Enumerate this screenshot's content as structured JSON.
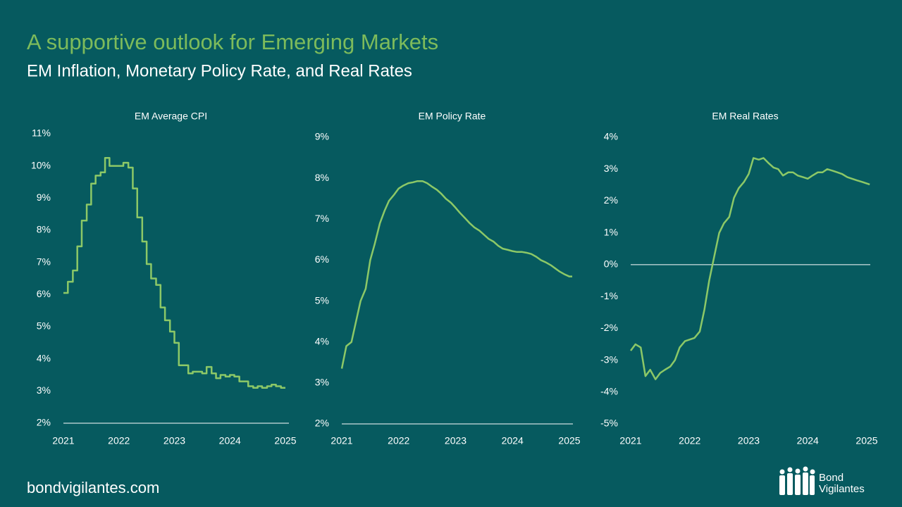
{
  "slide": {
    "title": "A supportive outlook for Emerging Markets",
    "subtitle": "EM Inflation, Monetary Policy Rate, and Real Rates",
    "website": "bondvigilantes.com",
    "logo": [
      "Bond",
      "Vigilantes"
    ]
  },
  "chart_data": [
    {
      "type": "line",
      "step": true,
      "title": "EM Average CPI",
      "color": "#8cc867",
      "x": [
        2021,
        2021.08,
        2021.17,
        2021.25,
        2021.33,
        2021.42,
        2021.5,
        2021.58,
        2021.67,
        2021.75,
        2021.83,
        2021.92,
        2022,
        2022.08,
        2022.17,
        2022.25,
        2022.33,
        2022.42,
        2022.5,
        2022.58,
        2022.67,
        2022.75,
        2022.83,
        2022.92,
        2023,
        2023.08,
        2023.17,
        2023.25,
        2023.33,
        2023.42,
        2023.5,
        2023.58,
        2023.67,
        2023.75,
        2023.83,
        2023.92,
        2024,
        2024.08,
        2024.17,
        2024.25,
        2024.33,
        2024.42,
        2024.5,
        2024.58,
        2024.67,
        2024.75,
        2024.83,
        2024.92,
        2025
      ],
      "values": [
        6.05,
        6.4,
        6.75,
        7.5,
        8.3,
        8.8,
        9.45,
        9.7,
        9.8,
        10.25,
        10.0,
        10.0,
        10.0,
        10.1,
        9.95,
        9.3,
        8.4,
        7.65,
        6.95,
        6.5,
        6.3,
        5.6,
        5.2,
        4.85,
        4.5,
        3.8,
        3.8,
        3.55,
        3.6,
        3.6,
        3.55,
        3.75,
        3.55,
        3.4,
        3.5,
        3.45,
        3.5,
        3.45,
        3.3,
        3.3,
        3.15,
        3.1,
        3.15,
        3.1,
        3.15,
        3.2,
        3.15,
        3.1,
        3.1
      ],
      "xlim": [
        2021,
        2025
      ],
      "xticks": [
        2021,
        2022,
        2023,
        2024,
        2025
      ],
      "ylim": [
        2,
        11
      ],
      "yticks": [
        {
          "value": 2,
          "label": "2%"
        },
        {
          "value": 3,
          "label": "3%"
        },
        {
          "value": 4,
          "label": "4%"
        },
        {
          "value": 5,
          "label": "5%"
        },
        {
          "value": 6,
          "label": "6%"
        },
        {
          "value": 7,
          "label": "7%"
        },
        {
          "value": 8,
          "label": "8%"
        },
        {
          "value": 9,
          "label": "9%"
        },
        {
          "value": 10,
          "label": "10%"
        },
        {
          "value": 11,
          "label": "11%"
        }
      ]
    },
    {
      "type": "line",
      "step": false,
      "title": "EM Policy Rate",
      "color": "#8cc867",
      "x": [
        2021,
        2021.08,
        2021.17,
        2021.25,
        2021.33,
        2021.42,
        2021.5,
        2021.58,
        2021.67,
        2021.75,
        2021.83,
        2021.92,
        2022,
        2022.08,
        2022.17,
        2022.25,
        2022.33,
        2022.42,
        2022.5,
        2022.58,
        2022.67,
        2022.75,
        2022.83,
        2022.92,
        2023,
        2023.08,
        2023.17,
        2023.25,
        2023.33,
        2023.42,
        2023.5,
        2023.58,
        2023.67,
        2023.75,
        2023.83,
        2023.92,
        2024,
        2024.08,
        2024.17,
        2024.25,
        2024.33,
        2024.42,
        2024.5,
        2024.58,
        2024.67,
        2024.75,
        2024.83,
        2024.92,
        2025,
        2025.05
      ],
      "values": [
        3.35,
        3.9,
        4.0,
        4.5,
        5.0,
        5.3,
        6.0,
        6.4,
        6.9,
        7.2,
        7.45,
        7.6,
        7.75,
        7.82,
        7.88,
        7.9,
        7.93,
        7.93,
        7.88,
        7.8,
        7.72,
        7.62,
        7.5,
        7.4,
        7.28,
        7.15,
        7.02,
        6.9,
        6.8,
        6.72,
        6.62,
        6.52,
        6.45,
        6.35,
        6.28,
        6.25,
        6.22,
        6.2,
        6.2,
        6.18,
        6.15,
        6.08,
        6.0,
        5.95,
        5.88,
        5.8,
        5.72,
        5.65,
        5.6,
        5.6
      ],
      "xlim": [
        2021,
        2025
      ],
      "xticks": [
        2021,
        2022,
        2023,
        2024,
        2025
      ],
      "ylim": [
        2,
        9
      ],
      "yticks": [
        {
          "value": 2,
          "label": "2%"
        },
        {
          "value": 3,
          "label": "3%"
        },
        {
          "value": 4,
          "label": "4%"
        },
        {
          "value": 5,
          "label": "5%"
        },
        {
          "value": 6,
          "label": "6%"
        },
        {
          "value": 7,
          "label": "7%"
        },
        {
          "value": 8,
          "label": "8%"
        },
        {
          "value": 9,
          "label": "9%"
        }
      ]
    },
    {
      "type": "line",
      "step": false,
      "title": "EM Real Rates",
      "color": "#8cc867",
      "x": [
        2021,
        2021.08,
        2021.17,
        2021.25,
        2021.33,
        2021.42,
        2021.5,
        2021.58,
        2021.67,
        2021.75,
        2021.83,
        2021.92,
        2022,
        2022.08,
        2022.17,
        2022.25,
        2022.33,
        2022.42,
        2022.5,
        2022.58,
        2022.67,
        2022.75,
        2022.83,
        2022.92,
        2023,
        2023.08,
        2023.17,
        2023.25,
        2023.33,
        2023.42,
        2023.5,
        2023.58,
        2023.67,
        2023.75,
        2023.83,
        2023.92,
        2024,
        2024.08,
        2024.17,
        2024.25,
        2024.33,
        2024.42,
        2024.5,
        2024.58,
        2024.67,
        2024.75,
        2024.83,
        2024.92,
        2025,
        2025.05
      ],
      "values": [
        -2.7,
        -2.5,
        -2.6,
        -3.5,
        -3.3,
        -3.6,
        -3.4,
        -3.3,
        -3.2,
        -3.0,
        -2.6,
        -2.4,
        -2.35,
        -2.3,
        -2.1,
        -1.4,
        -0.5,
        0.3,
        1.0,
        1.3,
        1.5,
        2.1,
        2.4,
        2.6,
        2.85,
        3.35,
        3.3,
        3.35,
        3.2,
        3.05,
        3.0,
        2.8,
        2.9,
        2.9,
        2.8,
        2.75,
        2.7,
        2.8,
        2.9,
        2.9,
        3.0,
        2.95,
        2.9,
        2.85,
        2.75,
        2.7,
        2.65,
        2.6,
        2.55,
        2.52
      ],
      "xlim": [
        2021,
        2025
      ],
      "xticks": [
        2021,
        2022,
        2023,
        2024,
        2025
      ],
      "ylim": [
        -5,
        4
      ],
      "yticks": [
        {
          "value": -5,
          "label": "-5%"
        },
        {
          "value": -4,
          "label": "-4%"
        },
        {
          "value": -3,
          "label": "-3%"
        },
        {
          "value": -2,
          "label": "-2%"
        },
        {
          "value": -1,
          "label": "-1%"
        },
        {
          "value": 0,
          "label": "0%"
        },
        {
          "value": 1,
          "label": "1%"
        },
        {
          "value": 2,
          "label": "2%"
        },
        {
          "value": 3,
          "label": "3%"
        },
        {
          "value": 4,
          "label": "4%"
        }
      ]
    }
  ]
}
